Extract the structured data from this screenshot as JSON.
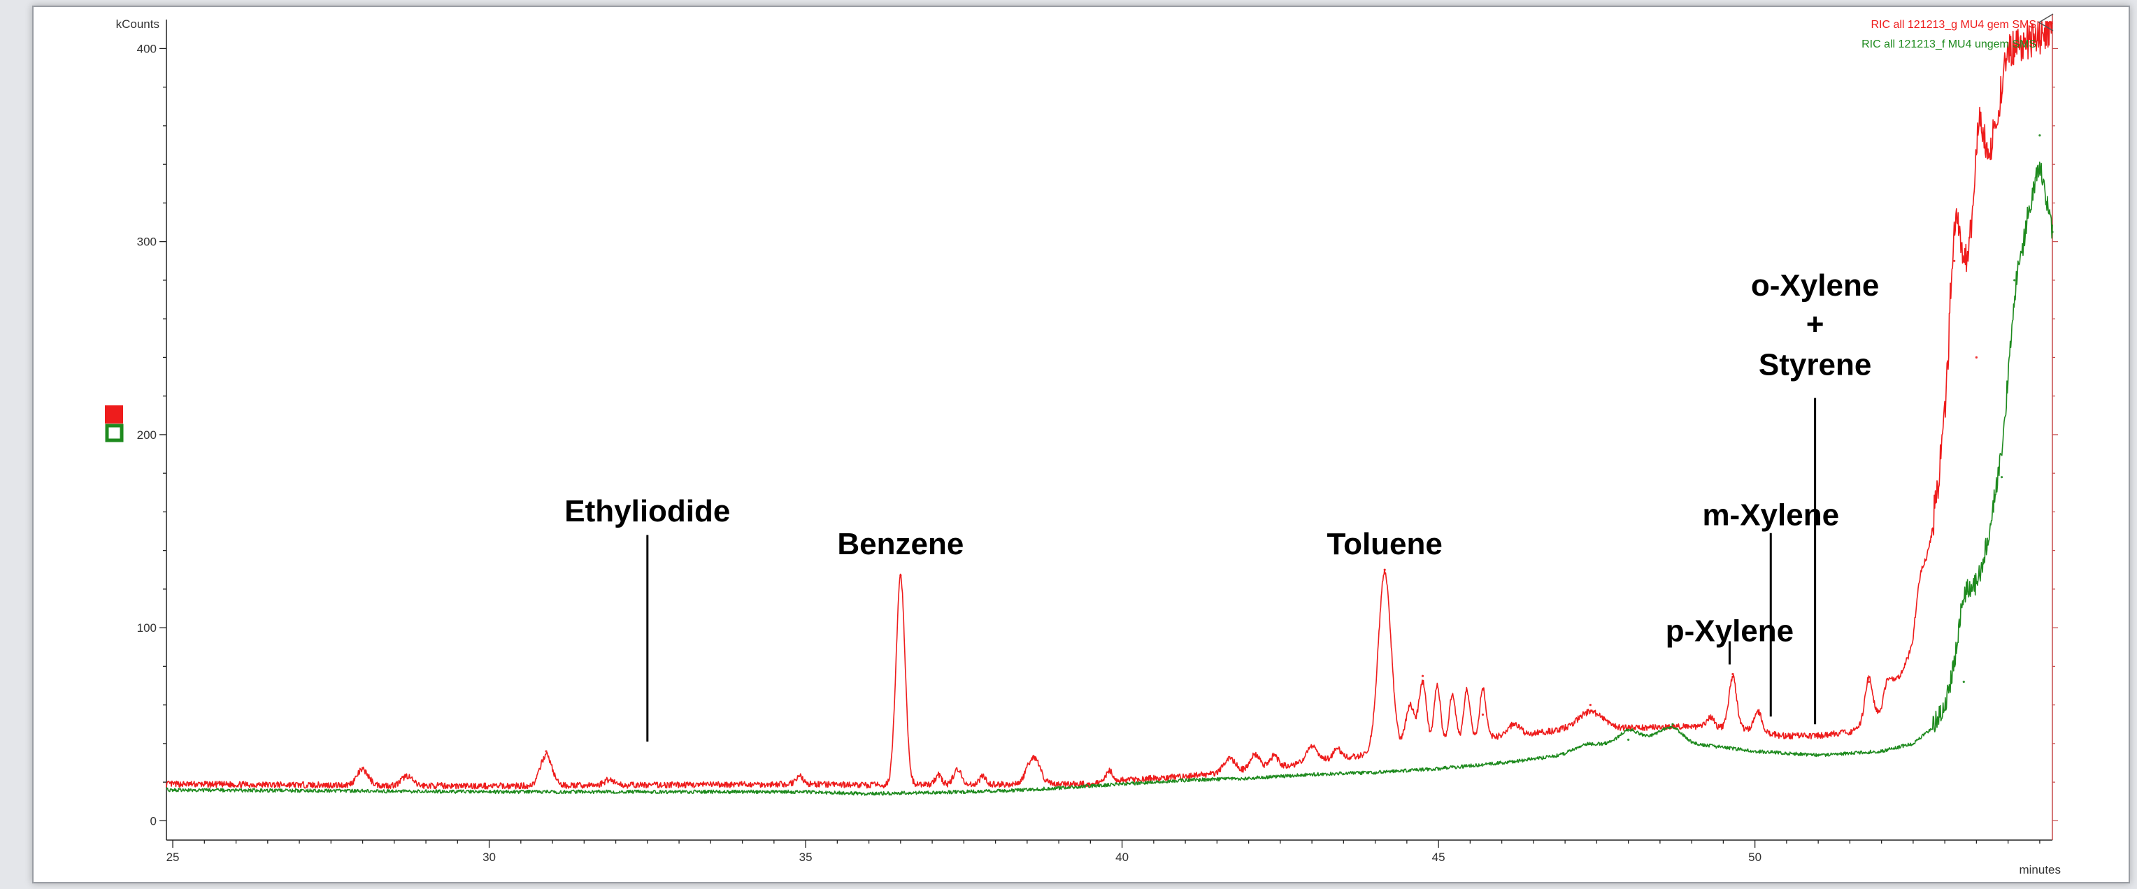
{
  "chart_data": {
    "type": "line",
    "xlabel": "minutes",
    "ylabel": "kCounts",
    "xlim": [
      24.9,
      54.7
    ],
    "ylim": [
      -10,
      415
    ],
    "x_ticks": [
      "25",
      "30",
      "35",
      "40",
      "45",
      "50"
    ],
    "y_ticks": [
      "0",
      "100",
      "200",
      "300",
      "400"
    ],
    "grid": false,
    "legend_position": "top-right",
    "series": [
      {
        "name": "RIC all 121213_g MU4 gem SMS",
        "color": "#ee1c1c",
        "baseline": [
          [
            24.9,
            19
          ],
          [
            30,
            18
          ],
          [
            35,
            19
          ],
          [
            36,
            18.5
          ],
          [
            38,
            19
          ],
          [
            39.5,
            19
          ],
          [
            40,
            21
          ],
          [
            41,
            23
          ],
          [
            42,
            26
          ],
          [
            43,
            30
          ],
          [
            44,
            35
          ],
          [
            45,
            40
          ],
          [
            46,
            44
          ],
          [
            47,
            47
          ],
          [
            48,
            48
          ],
          [
            49,
            49
          ],
          [
            50,
            47
          ],
          [
            50.4,
            44
          ],
          [
            51,
            44
          ],
          [
            51.5,
            46
          ],
          [
            52,
            55
          ],
          [
            52.5,
            90
          ],
          [
            52.8,
            150
          ],
          [
            53,
            205
          ],
          [
            53.2,
            270
          ],
          [
            53.4,
            300
          ],
          [
            53.5,
            320
          ],
          [
            53.8,
            360
          ],
          [
            54,
            400
          ],
          [
            54.4,
            405
          ],
          [
            54.7,
            410
          ]
        ],
        "peaks": [
          [
            28,
            8,
            0.09
          ],
          [
            28.7,
            5,
            0.08
          ],
          [
            30.9,
            16,
            0.09
          ],
          [
            31.9,
            3,
            0.08
          ],
          [
            34.9,
            4,
            0.06
          ],
          [
            36.5,
            108,
            0.07
          ],
          [
            37.1,
            5,
            0.05
          ],
          [
            37.4,
            8,
            0.06
          ],
          [
            37.8,
            4,
            0.05
          ],
          [
            38.6,
            14,
            0.1
          ],
          [
            39.8,
            6,
            0.05
          ],
          [
            41.7,
            7,
            0.09
          ],
          [
            42.1,
            8,
            0.08
          ],
          [
            42.4,
            6,
            0.07
          ],
          [
            43,
            8,
            0.1
          ],
          [
            43.4,
            5,
            0.07
          ],
          [
            44.15,
            93,
            0.1
          ],
          [
            44.55,
            22,
            0.07
          ],
          [
            44.75,
            33,
            0.06
          ],
          [
            44.98,
            30,
            0.05
          ],
          [
            45.22,
            25,
            0.05
          ],
          [
            45.45,
            26,
            0.05
          ],
          [
            45.7,
            26,
            0.05
          ],
          [
            46.2,
            6,
            0.08
          ],
          [
            47.4,
            9,
            0.2
          ],
          [
            49.3,
            5,
            0.06
          ],
          [
            49.65,
            27,
            0.06
          ],
          [
            50.05,
            10,
            0.06
          ],
          [
            51.8,
            23,
            0.06
          ],
          [
            52.1,
            12,
            0.07
          ],
          [
            52.6,
            15,
            0.07
          ],
          [
            53.15,
            55,
            0.07
          ],
          [
            53.55,
            35,
            0.06
          ]
        ],
        "noise": 1.6,
        "points": [
          [
            28,
            27
          ],
          [
            30.9,
            36
          ],
          [
            36.5,
            127
          ],
          [
            38.6,
            33
          ],
          [
            44.15,
            130
          ],
          [
            44.75,
            75
          ],
          [
            45.7,
            55
          ],
          [
            47.4,
            60
          ],
          [
            49.65,
            76
          ],
          [
            51.8,
            72
          ],
          [
            53.15,
            290
          ],
          [
            53.5,
            240
          ],
          [
            54,
            400
          ]
        ]
      },
      {
        "name": "RIC all 121213_f MU4 ungem SMS",
        "color": "#1e8a1e",
        "baseline": [
          [
            24.9,
            16
          ],
          [
            30,
            15
          ],
          [
            35,
            15
          ],
          [
            36,
            14
          ],
          [
            37.5,
            15
          ],
          [
            38.5,
            16
          ],
          [
            40,
            19
          ],
          [
            41,
            21
          ],
          [
            42,
            22
          ],
          [
            43,
            24
          ],
          [
            44,
            25
          ],
          [
            45,
            27
          ],
          [
            46,
            30
          ],
          [
            47,
            34
          ],
          [
            47.5,
            38
          ],
          [
            48,
            42
          ],
          [
            48.5,
            44
          ],
          [
            49,
            40
          ],
          [
            49.5,
            38
          ],
          [
            50,
            36
          ],
          [
            51,
            34
          ],
          [
            52,
            36
          ],
          [
            52.5,
            40
          ],
          [
            52.8,
            48
          ],
          [
            53,
            60
          ],
          [
            53.3,
            90
          ],
          [
            53.6,
            130
          ],
          [
            53.9,
            190
          ],
          [
            54.1,
            260
          ],
          [
            54.3,
            320
          ],
          [
            54.5,
            340
          ],
          [
            54.7,
            305
          ]
        ],
        "peaks": [
          [
            47.3,
            3,
            0.2
          ],
          [
            48.0,
            5,
            0.15
          ],
          [
            48.7,
            6,
            0.15
          ],
          [
            53.3,
            16,
            0.08
          ],
          [
            53.35,
            10,
            0.15
          ],
          [
            54.1,
            12,
            0.08
          ],
          [
            54.3,
            -8,
            0.08
          ]
        ],
        "noise": 0.9,
        "points": [
          [
            36.5,
            14
          ],
          [
            40,
            19
          ],
          [
            45,
            27
          ],
          [
            48,
            42
          ],
          [
            48.7,
            50
          ],
          [
            52,
            36
          ],
          [
            53.3,
            72
          ],
          [
            53.9,
            178
          ],
          [
            54.1,
            280
          ],
          [
            54.5,
            355
          ],
          [
            54.7,
            305
          ]
        ]
      }
    ],
    "annotations": [
      {
        "text": "Ethyliodide",
        "x": 32.5,
        "text_y": 155,
        "line_top": 148,
        "line_bottom": 41
      },
      {
        "text": "Benzene",
        "x": 36.5,
        "text_y": 138
      },
      {
        "text": "Toluene",
        "x": 44.15,
        "text_y": 138
      },
      {
        "text": "p-Xylene",
        "x": 49.6,
        "text_y": 93,
        "line_top": 93,
        "line_bottom": 81
      },
      {
        "text": "m-Xylene",
        "x": 50.25,
        "text_y": 153,
        "line_top": 149,
        "line_bottom": 54
      },
      {
        "text": "o-Xylene",
        "x": 50.95,
        "text_y": 272
      },
      {
        "text": "+",
        "x": 50.95,
        "text_y": 252
      },
      {
        "text": "Styrene",
        "x": 50.95,
        "text_y": 231,
        "line_top": 219,
        "line_bottom": 50
      }
    ]
  }
}
